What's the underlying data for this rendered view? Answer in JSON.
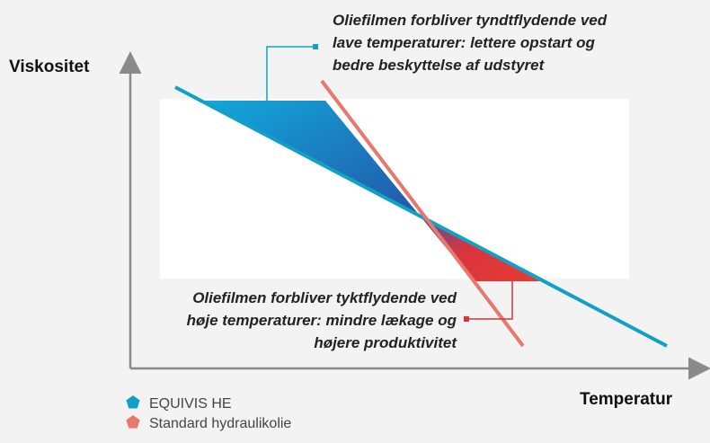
{
  "axes": {
    "y_label": "Viskositet",
    "x_label": "Temperatur"
  },
  "annotations": [
    {
      "lines": [
        "Oliefilmen forbliver tyndtflydende ved",
        "lave temperaturer: lettere opstart og",
        "bedre beskyttelse af udstyret"
      ]
    },
    {
      "lines": [
        "Oliefilmen forbliver tyktflydende ved",
        "høje temperaturer: mindre lækage og",
        "højere produktivitet"
      ]
    }
  ],
  "legend": [
    {
      "label": "EQUIVIS HE",
      "color": "#11a1c6"
    },
    {
      "label": "Standard hydraulikolie",
      "color": "#e8786c"
    }
  ]
}
